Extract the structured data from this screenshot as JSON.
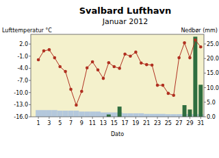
{
  "chart_data": {
    "type": "line",
    "title": "Svalbard Lufthavn",
    "subtitle": "Januar 2012",
    "ylabel": "Lufttemperatur °C",
    "y2label": "Nedbør (mm)",
    "xlabel": "Dato",
    "x": [
      1,
      2,
      3,
      4,
      5,
      6,
      7,
      8,
      9,
      10,
      11,
      12,
      13,
      14,
      15,
      16,
      17,
      18,
      19,
      20,
      21,
      22,
      23,
      24,
      25,
      26,
      27,
      28,
      29,
      30,
      31
    ],
    "series": [
      {
        "type": "bar",
        "axis": "y2",
        "color": "#b4c8dc",
        "values": [
          2.3,
          2.3,
          2.3,
          2.3,
          2.1,
          2.1,
          2.1,
          2.1,
          1.8,
          1.8,
          1.8,
          1.8,
          1.5,
          1.5,
          1.5,
          1.5,
          1.2,
          1.2,
          1.2,
          1.2,
          1.0,
          1.0,
          1.0,
          1.0,
          0.9,
          0.9,
          0.9,
          0.9,
          0.9,
          0.9,
          0.9
        ]
      },
      {
        "type": "bar",
        "axis": "y2",
        "color": "#2f6e3f",
        "values": [
          0,
          0,
          0,
          0,
          0,
          0,
          0,
          0,
          0,
          0,
          0,
          0,
          0,
          0.8,
          0,
          3.5,
          0,
          0,
          0,
          0,
          0,
          0,
          0,
          0,
          0,
          0,
          0,
          4.0,
          2.5,
          27.5,
          11.0
        ]
      },
      {
        "type": "line",
        "color": "#b03020",
        "marker": "circle",
        "values": [
          -1.9,
          0.3,
          0.6,
          -1.4,
          -3.6,
          -4.8,
          -9.2,
          -13.1,
          -9.7,
          -3.9,
          -2.4,
          -4.4,
          -6.5,
          -2.6,
          -3.6,
          -4.0,
          -0.5,
          -1.0,
          0.0,
          -2.7,
          -3.1,
          -3.2,
          -8.2,
          -8.2,
          -10.2,
          -10.7,
          -1.4,
          2.3,
          -1.4,
          3.0,
          1.3
        ]
      }
    ],
    "xlim": [
      -0.4,
      31.6
    ],
    "xticks": [
      1,
      3,
      5,
      7,
      9,
      11,
      13,
      15,
      17,
      19,
      21,
      23,
      25,
      27,
      29,
      31
    ],
    "ylim": [
      -16,
      4.4
    ],
    "yticks": [
      {
        "value": 2,
        "label": "2.0"
      },
      {
        "value": -1,
        "label": "-1.0"
      },
      {
        "value": -4,
        "label": "-4.0"
      },
      {
        "value": -7,
        "label": "-7.0"
      },
      {
        "value": -10,
        "label": "-10.0"
      },
      {
        "value": -13,
        "label": "-13.0"
      },
      {
        "value": -16,
        "label": "-16.0"
      }
    ],
    "y2lim": [
      0,
      28.3
    ],
    "y2ticks": [
      {
        "value": 0,
        "label": "0.0"
      },
      {
        "value": 5,
        "label": "5.0"
      },
      {
        "value": 10,
        "label": "10.0"
      },
      {
        "value": 15,
        "label": "15.0"
      },
      {
        "value": 20,
        "label": "20.0"
      },
      {
        "value": 25,
        "label": "25.0"
      }
    ],
    "grid": false
  }
}
